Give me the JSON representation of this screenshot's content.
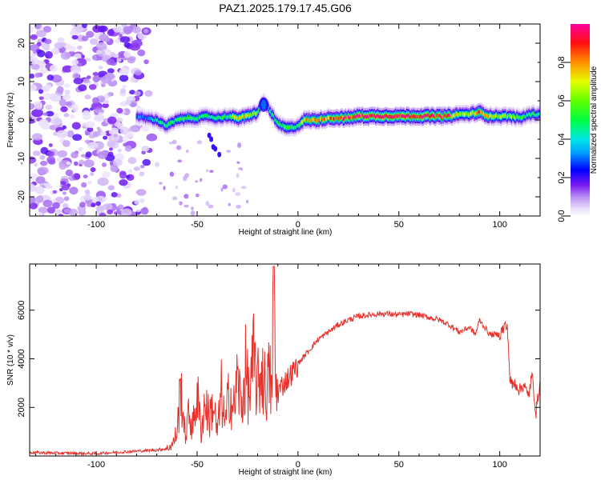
{
  "title": "PAZ1.2025.179.17.45.G06",
  "colors": {
    "snr_line": "#e8302a",
    "colormap": [
      "#ffffff",
      "#d6c8f4",
      "#a070ee",
      "#8020f0",
      "#0000ff",
      "#00c8ff",
      "#00ff80",
      "#00ff00",
      "#b0ff00",
      "#ffff00",
      "#ff8000",
      "#ff0000",
      "#ff00a0"
    ]
  },
  "chart_data": [
    {
      "type": "heatmap",
      "xlabel": "Height of straight line (km)",
      "ylabel": "Frequency (Hz)",
      "xlim": [
        -133,
        120
      ],
      "ylim": [
        -25,
        25
      ],
      "xticks": [
        -100,
        -50,
        0,
        50,
        100
      ],
      "xtick_labels": [
        "-100",
        "-50",
        "0",
        "50",
        "100"
      ],
      "yticks": [
        -20,
        -10,
        0,
        10,
        20
      ],
      "ytick_labels": [
        "-20",
        "-10",
        "0",
        "10",
        "20"
      ],
      "colorbar": {
        "label": "Normalized spectral amplitude",
        "range": [
          0,
          1
        ],
        "ticks": [
          0.0,
          0.2,
          0.4,
          0.6,
          0.8
        ],
        "tick_labels": [
          "0.0",
          "0.2",
          "0.4",
          "0.6",
          "0.8"
        ]
      },
      "ridge": {
        "x": [
          -80,
          -76,
          -70,
          -65,
          -60,
          -55,
          -50,
          -45,
          -40,
          -35,
          -30,
          -25,
          -20,
          -17,
          -14,
          -10,
          -6,
          -3,
          0,
          3,
          6,
          10,
          15,
          20,
          25,
          30,
          40,
          50,
          60,
          70,
          75,
          80,
          85,
          90,
          95,
          100,
          105,
          110,
          115,
          120
        ],
        "freq": [
          1.0,
          0.5,
          0.0,
          -1.5,
          0.0,
          0.5,
          0.5,
          1.0,
          0.5,
          1.0,
          0.5,
          1.0,
          2.0,
          5.0,
          2.5,
          -1.0,
          -2.0,
          -2.0,
          -1.5,
          0.0,
          0.0,
          0.0,
          0.5,
          0.5,
          0.5,
          1.0,
          1.0,
          1.0,
          1.0,
          1.0,
          1.0,
          1.5,
          1.5,
          2.0,
          1.0,
          1.0,
          1.0,
          0.5,
          1.5,
          1.5
        ],
        "amplitude": [
          0.3,
          0.3,
          0.4,
          0.5,
          0.5,
          0.5,
          0.5,
          0.45,
          0.45,
          0.5,
          0.7,
          0.75,
          0.55,
          0.3,
          0.45,
          0.5,
          0.55,
          0.5,
          0.45,
          0.7,
          0.75,
          0.8,
          0.8,
          0.85,
          0.9,
          0.95,
          0.97,
          0.97,
          0.97,
          0.95,
          0.9,
          0.6,
          0.65,
          0.8,
          0.75,
          0.6,
          0.6,
          0.55,
          0.5,
          0.45
        ]
      },
      "noise_region_x": [
        -133,
        -70
      ]
    },
    {
      "type": "line",
      "xlabel": "Height of straight line (km)",
      "ylabel": "SNR (10 * v/v)",
      "xlim": [
        -133,
        120
      ],
      "ylim": [
        0,
        7900
      ],
      "xticks": [
        -100,
        -50,
        0,
        50,
        100
      ],
      "xtick_labels": [
        "-100",
        "-50",
        "0",
        "50",
        "100"
      ],
      "yticks": [
        2000,
        4000,
        6000
      ],
      "ytick_labels": [
        "2000",
        "4000",
        "6000"
      ],
      "series": [
        {
          "x": [
            -133,
            -120,
            -100,
            -90,
            -80,
            -70,
            -65,
            -62,
            -60,
            -58,
            -56,
            -54,
            -52,
            -50,
            -48,
            -46,
            -44,
            -42,
            -40,
            -38,
            -36,
            -34,
            -32,
            -30,
            -28,
            -26,
            -24,
            -22,
            -20,
            -18,
            -16,
            -14,
            -13,
            -12,
            -11,
            -10,
            -8,
            -5,
            -2,
            0,
            5,
            10,
            15,
            20,
            25,
            30,
            35,
            40,
            45,
            50,
            55,
            60,
            65,
            70,
            75,
            80,
            85,
            88,
            90,
            95,
            100,
            103,
            104,
            105,
            106,
            108,
            110,
            112,
            114,
            116,
            118,
            120
          ],
          "values": [
            150,
            120,
            100,
            150,
            200,
            250,
            300,
            500,
            1000,
            2900,
            800,
            1700,
            1200,
            2600,
            1000,
            2300,
            1500,
            2200,
            900,
            2600,
            1200,
            2800,
            1800,
            3200,
            2000,
            3500,
            2400,
            3900,
            2800,
            3600,
            2700,
            3300,
            2500,
            7800,
            2600,
            2600,
            2900,
            3200,
            3500,
            3800,
            4300,
            4800,
            5100,
            5400,
            5600,
            5750,
            5800,
            5850,
            5850,
            5800,
            5850,
            5800,
            5700,
            5600,
            5400,
            5100,
            5300,
            5000,
            5600,
            5000,
            5000,
            5400,
            5100,
            3200,
            2900,
            3000,
            2700,
            3000,
            2400,
            3300,
            1800,
            3100
          ]
        }
      ]
    }
  ]
}
